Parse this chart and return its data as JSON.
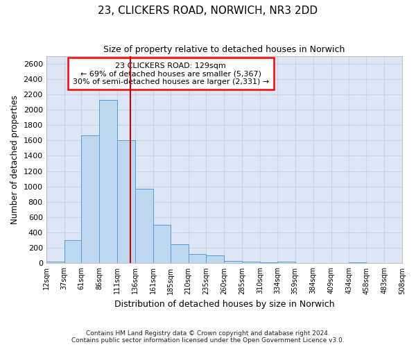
{
  "title": "23, CLICKERS ROAD, NORWICH, NR3 2DD",
  "subtitle": "Size of property relative to detached houses in Norwich",
  "xlabel": "Distribution of detached houses by size in Norwich",
  "ylabel": "Number of detached properties",
  "footer_line1": "Contains HM Land Registry data © Crown copyright and database right 2024.",
  "footer_line2": "Contains public sector information licensed under the Open Government Licence v3.0.",
  "annotation_line1": "23 CLICKERS ROAD: 129sqm",
  "annotation_line2": "← 69% of detached houses are smaller (5,367)",
  "annotation_line3": "30% of semi-detached houses are larger (2,331) →",
  "bar_edges": [
    12,
    37,
    61,
    86,
    111,
    136,
    161,
    185,
    210,
    235,
    260,
    285,
    310,
    334,
    359,
    384,
    409,
    434,
    458,
    483,
    508
  ],
  "bar_heights": [
    20,
    300,
    1670,
    2130,
    1600,
    970,
    500,
    245,
    125,
    105,
    35,
    20,
    15,
    20,
    5,
    5,
    5,
    10,
    5,
    5
  ],
  "bar_color": "#bdd7ee",
  "bar_edge_color": "#5b9bd5",
  "vline_color": "#cc0000",
  "vline_x": 129,
  "ylim": [
    0,
    2700
  ],
  "yticks": [
    0,
    200,
    400,
    600,
    800,
    1000,
    1200,
    1400,
    1600,
    1800,
    2000,
    2200,
    2400,
    2600
  ],
  "xlim": [
    12,
    508
  ],
  "grid_color": "#c8d4e8",
  "background_color": "#dce6f5",
  "tick_labels": [
    "12sqm",
    "37sqm",
    "61sqm",
    "86sqm",
    "111sqm",
    "136sqm",
    "161sqm",
    "185sqm",
    "210sqm",
    "235sqm",
    "260sqm",
    "285sqm",
    "310sqm",
    "334sqm",
    "359sqm",
    "384sqm",
    "409sqm",
    "434sqm",
    "458sqm",
    "483sqm",
    "508sqm"
  ]
}
